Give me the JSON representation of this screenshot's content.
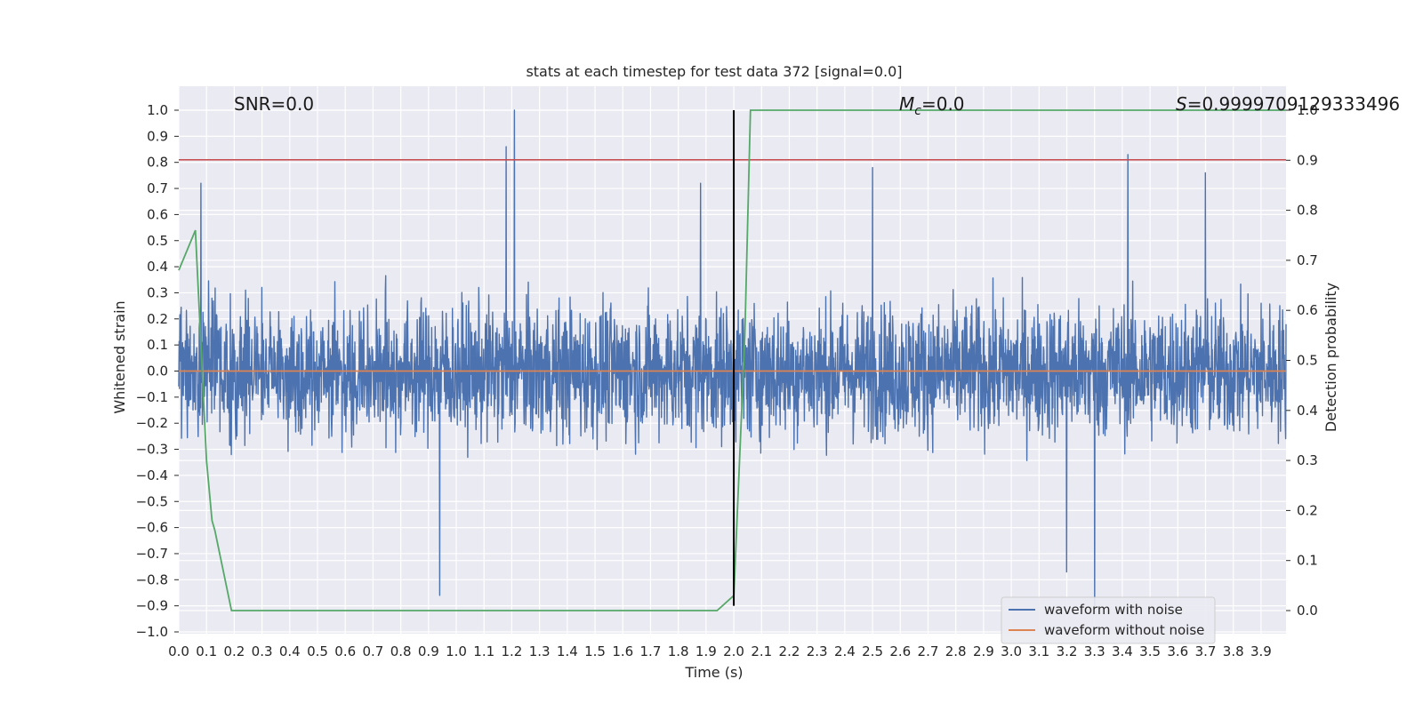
{
  "chart_data": {
    "type": "line",
    "title": "stats at each timestep for test data 372 [signal=0.0]",
    "xlabel": "Time (s)",
    "ylabel": "Whitened strain",
    "y2label": "Detection probability",
    "xlim": [
      0.0,
      3.99
    ],
    "ylim": [
      -1.0,
      1.0
    ],
    "y2lim": [
      -0.045,
      1.045
    ],
    "x_ticks": [
      "0.0",
      "0.1",
      "0.2",
      "0.3",
      "0.4",
      "0.5",
      "0.6",
      "0.7",
      "0.8",
      "0.9",
      "1.0",
      "1.1",
      "1.2",
      "1.3",
      "1.4",
      "1.5",
      "1.6",
      "1.7",
      "1.8",
      "1.9",
      "2.0",
      "2.1",
      "2.2",
      "2.3",
      "2.4",
      "2.5",
      "2.6",
      "2.7",
      "2.8",
      "2.9",
      "3.0",
      "3.1",
      "3.2",
      "3.3",
      "3.4",
      "3.5",
      "3.6",
      "3.7",
      "3.8",
      "3.9"
    ],
    "y_ticks": [
      "1.0",
      "0.9",
      "0.8",
      "0.7",
      "0.6",
      "0.5",
      "0.4",
      "0.3",
      "0.2",
      "0.1",
      "0.0",
      "−0.1",
      "−0.2",
      "−0.3",
      "−0.4",
      "−0.5",
      "−0.6",
      "−0.7",
      "−0.8",
      "−0.9",
      "−1.0"
    ],
    "y2_ticks": [
      "1.0",
      "0.9",
      "0.8",
      "0.7",
      "0.6",
      "0.5",
      "0.4",
      "0.3",
      "0.2",
      "0.1",
      "0.0"
    ],
    "annotations": {
      "snr": "SNR=0.0",
      "mc_main": "M",
      "mc_sub": "c",
      "mc_rest": "=0.0",
      "s_main": "S",
      "s_rest": "=0.9999709129333496"
    },
    "legend": {
      "placement": "lower-right",
      "entries": [
        "waveform with noise",
        "waveform without noise"
      ]
    },
    "series": [
      {
        "name": "waveform with noise",
        "color": "#4c72b0",
        "axis": "left",
        "style": "dense noise, roughly within −0.6..0.6 with spikes",
        "spikes": [
          {
            "x": 0.08,
            "y": 0.72
          },
          {
            "x": 0.94,
            "y": -0.86
          },
          {
            "x": 1.18,
            "y": 0.86
          },
          {
            "x": 1.21,
            "y": 1.0
          },
          {
            "x": 1.88,
            "y": 0.72
          },
          {
            "x": 2.5,
            "y": 0.78
          },
          {
            "x": 3.2,
            "y": -0.77
          },
          {
            "x": 3.3,
            "y": -0.9
          },
          {
            "x": 3.42,
            "y": 0.83
          },
          {
            "x": 3.7,
            "y": 0.76
          }
        ]
      },
      {
        "name": "waveform without noise",
        "color": "#dd8452",
        "axis": "left",
        "x": [
          0.0,
          3.99
        ],
        "y": [
          0.0,
          0.0
        ]
      },
      {
        "color": "#55a868",
        "axis": "right",
        "x": [
          0.0,
          0.06,
          0.1,
          0.12,
          0.13,
          0.19,
          0.25,
          1.94,
          2.0,
          2.04,
          2.06,
          3.99
        ],
        "y": [
          0.68,
          0.76,
          0.3,
          0.18,
          0.16,
          0.0,
          0.0,
          0.0,
          0.03,
          0.55,
          1.0,
          1.0
        ]
      }
    ],
    "threshold_line": {
      "color": "#c44e52",
      "axis": "left",
      "y": 0.81
    },
    "marker_line": {
      "color": "#000000",
      "x": 2.0,
      "y_range": [
        -0.9,
        1.0
      ]
    },
    "grid": true
  }
}
